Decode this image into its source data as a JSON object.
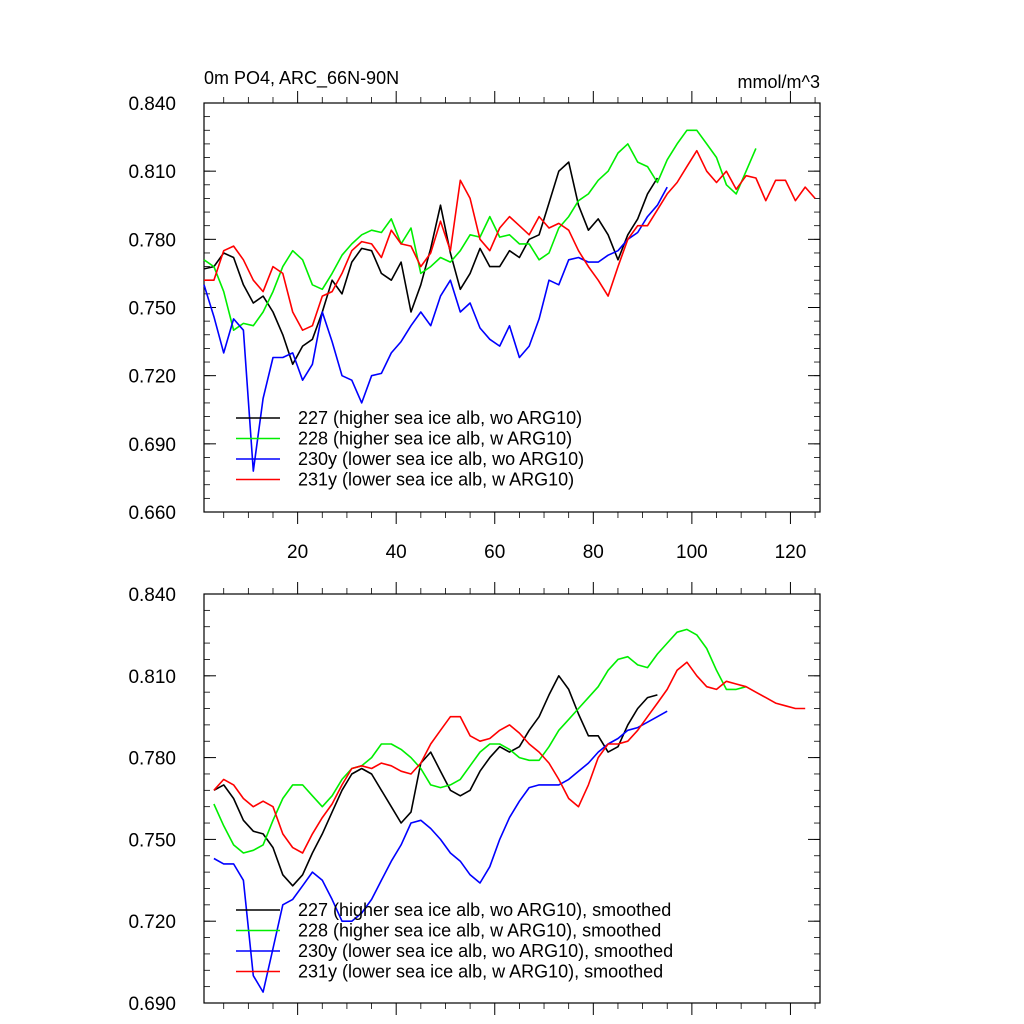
{
  "chart_data": [
    {
      "type": "line",
      "title": "0m PO4, ARC_66N-90N",
      "units": "mmol/m^3",
      "xlabel": "",
      "ylabel": "",
      "xlim": [
        1,
        126
      ],
      "ylim": [
        0.66,
        0.84
      ],
      "x_ticks": [
        20,
        40,
        60,
        80,
        100,
        120
      ],
      "x_tick_labels": [
        "20",
        "40",
        "60",
        "80",
        "100",
        "120"
      ],
      "y_ticks": [
        0.66,
        0.69,
        0.72,
        0.75,
        0.78,
        0.81,
        0.84
      ],
      "y_tick_labels": [
        "0.660",
        "0.690",
        "0.720",
        "0.750",
        "0.780",
        "0.810",
        "0.840"
      ],
      "legend_position": "bottom-left",
      "series": [
        {
          "name": "227 (higher sea ice alb, wo ARG10)",
          "color": "#000000",
          "x": [
            1,
            3,
            5,
            7,
            9,
            11,
            13,
            15,
            17,
            19,
            21,
            23,
            25,
            27,
            29,
            31,
            33,
            35,
            37,
            39,
            41,
            43,
            45,
            47,
            49,
            51,
            53,
            55,
            57,
            59,
            61,
            63,
            65,
            67,
            69,
            71,
            73,
            75,
            77,
            79,
            81,
            83,
            85,
            87,
            89,
            91,
            93
          ],
          "y": [
            0.767,
            0.768,
            0.774,
            0.772,
            0.76,
            0.752,
            0.755,
            0.748,
            0.738,
            0.725,
            0.733,
            0.736,
            0.748,
            0.762,
            0.756,
            0.77,
            0.776,
            0.775,
            0.765,
            0.762,
            0.77,
            0.748,
            0.76,
            0.776,
            0.795,
            0.774,
            0.758,
            0.765,
            0.776,
            0.768,
            0.768,
            0.775,
            0.772,
            0.78,
            0.782,
            0.796,
            0.81,
            0.814,
            0.795,
            0.784,
            0.789,
            0.782,
            0.771,
            0.782,
            0.789,
            0.8,
            0.807
          ]
        },
        {
          "name": "228 (higher sea ice alb, w ARG10)",
          "color": "#00ee00",
          "x": [
            1,
            3,
            5,
            7,
            9,
            11,
            13,
            15,
            17,
            19,
            21,
            23,
            25,
            27,
            29,
            31,
            33,
            35,
            37,
            39,
            41,
            43,
            45,
            47,
            49,
            51,
            53,
            55,
            57,
            59,
            61,
            63,
            65,
            67,
            69,
            71,
            73,
            75,
            77,
            79,
            81,
            83,
            85,
            87,
            89,
            91,
            93,
            95,
            97,
            99,
            101,
            103,
            105,
            107,
            109,
            111,
            113
          ],
          "y": [
            0.771,
            0.768,
            0.757,
            0.74,
            0.743,
            0.742,
            0.748,
            0.757,
            0.768,
            0.775,
            0.771,
            0.76,
            0.758,
            0.765,
            0.773,
            0.778,
            0.782,
            0.784,
            0.783,
            0.789,
            0.778,
            0.785,
            0.765,
            0.768,
            0.772,
            0.77,
            0.775,
            0.782,
            0.781,
            0.79,
            0.781,
            0.782,
            0.778,
            0.778,
            0.771,
            0.774,
            0.785,
            0.79,
            0.797,
            0.8,
            0.806,
            0.81,
            0.818,
            0.822,
            0.814,
            0.812,
            0.805,
            0.815,
            0.822,
            0.828,
            0.828,
            0.822,
            0.816,
            0.804,
            0.8,
            0.81,
            0.82
          ]
        },
        {
          "name": "230y (lower sea ice alb, wo ARG10)",
          "color": "#0000ff",
          "x": [
            1,
            3,
            5,
            7,
            9,
            11,
            13,
            15,
            17,
            19,
            21,
            23,
            25,
            27,
            29,
            31,
            33,
            35,
            37,
            39,
            41,
            43,
            45,
            47,
            49,
            51,
            53,
            55,
            57,
            59,
            61,
            63,
            65,
            67,
            69,
            71,
            73,
            75,
            77,
            79,
            81,
            83,
            85,
            87,
            89,
            91,
            93,
            95
          ],
          "y": [
            0.76,
            0.746,
            0.73,
            0.745,
            0.74,
            0.678,
            0.71,
            0.728,
            0.728,
            0.73,
            0.718,
            0.725,
            0.748,
            0.735,
            0.72,
            0.718,
            0.708,
            0.72,
            0.721,
            0.73,
            0.735,
            0.742,
            0.748,
            0.742,
            0.755,
            0.762,
            0.748,
            0.752,
            0.741,
            0.736,
            0.733,
            0.742,
            0.728,
            0.733,
            0.745,
            0.762,
            0.76,
            0.771,
            0.772,
            0.77,
            0.77,
            0.773,
            0.775,
            0.78,
            0.783,
            0.79,
            0.795,
            0.803
          ]
        },
        {
          "name": "231y (lower sea ice alb, w ARG10)",
          "color": "#ff0000",
          "x": [
            1,
            3,
            5,
            7,
            9,
            11,
            13,
            15,
            17,
            19,
            21,
            23,
            25,
            27,
            29,
            31,
            33,
            35,
            37,
            39,
            41,
            43,
            45,
            47,
            49,
            51,
            53,
            55,
            57,
            59,
            61,
            63,
            65,
            67,
            69,
            71,
            73,
            75,
            77,
            79,
            81,
            83,
            85,
            87,
            89,
            91,
            93,
            95,
            97,
            99,
            101,
            103,
            105,
            107,
            109,
            111,
            113,
            115,
            117,
            119,
            121,
            123,
            125
          ],
          "y": [
            0.762,
            0.762,
            0.775,
            0.777,
            0.771,
            0.762,
            0.757,
            0.768,
            0.765,
            0.748,
            0.74,
            0.742,
            0.755,
            0.757,
            0.765,
            0.775,
            0.779,
            0.778,
            0.772,
            0.784,
            0.778,
            0.777,
            0.768,
            0.774,
            0.788,
            0.775,
            0.806,
            0.798,
            0.78,
            0.775,
            0.785,
            0.79,
            0.786,
            0.782,
            0.79,
            0.785,
            0.787,
            0.784,
            0.775,
            0.768,
            0.762,
            0.755,
            0.768,
            0.78,
            0.786,
            0.786,
            0.793,
            0.8,
            0.805,
            0.812,
            0.819,
            0.81,
            0.805,
            0.81,
            0.802,
            0.808,
            0.807,
            0.797,
            0.806,
            0.806,
            0.797,
            0.803,
            0.798
          ]
        }
      ]
    },
    {
      "type": "line",
      "title": "",
      "xlabel": "",
      "ylabel": "",
      "xlim": [
        1,
        126
      ],
      "ylim": [
        0.69,
        0.84
      ],
      "x_ticks": [
        20,
        40,
        60,
        80,
        100,
        120
      ],
      "y_ticks": [
        0.69,
        0.72,
        0.75,
        0.78,
        0.81,
        0.84
      ],
      "y_tick_labels": [
        "0.690",
        "0.720",
        "0.750",
        "0.780",
        "0.810",
        "0.840"
      ],
      "legend_position": "bottom-left",
      "series": [
        {
          "name": "227 (higher sea ice alb, wo ARG10), smoothed",
          "color": "#000000",
          "x": [
            3,
            5,
            7,
            9,
            11,
            13,
            15,
            17,
            19,
            21,
            23,
            25,
            27,
            29,
            31,
            33,
            35,
            37,
            39,
            41,
            43,
            45,
            47,
            49,
            51,
            53,
            55,
            57,
            59,
            61,
            63,
            65,
            67,
            69,
            71,
            73,
            75,
            77,
            79,
            81,
            83,
            85,
            87,
            89,
            91,
            93
          ],
          "y": [
            0.768,
            0.77,
            0.765,
            0.757,
            0.753,
            0.752,
            0.747,
            0.737,
            0.733,
            0.737,
            0.745,
            0.752,
            0.76,
            0.768,
            0.774,
            0.776,
            0.774,
            0.768,
            0.762,
            0.756,
            0.76,
            0.778,
            0.782,
            0.775,
            0.768,
            0.766,
            0.768,
            0.775,
            0.78,
            0.784,
            0.782,
            0.784,
            0.79,
            0.795,
            0.803,
            0.81,
            0.805,
            0.796,
            0.788,
            0.788,
            0.782,
            0.784,
            0.792,
            0.798,
            0.802,
            0.803
          ]
        },
        {
          "name": "228 (higher sea ice alb, w ARG10), smoothed",
          "color": "#00ee00",
          "x": [
            3,
            5,
            7,
            9,
            11,
            13,
            15,
            17,
            19,
            21,
            23,
            25,
            27,
            29,
            31,
            33,
            35,
            37,
            39,
            41,
            43,
            45,
            47,
            49,
            51,
            53,
            55,
            57,
            59,
            61,
            63,
            65,
            67,
            69,
            71,
            73,
            75,
            77,
            79,
            81,
            83,
            85,
            87,
            89,
            91,
            93,
            95,
            97,
            99,
            101,
            103,
            105,
            107,
            109,
            111
          ],
          "y": [
            0.763,
            0.755,
            0.748,
            0.745,
            0.746,
            0.748,
            0.757,
            0.765,
            0.77,
            0.77,
            0.766,
            0.762,
            0.766,
            0.772,
            0.776,
            0.777,
            0.78,
            0.785,
            0.785,
            0.783,
            0.78,
            0.776,
            0.77,
            0.769,
            0.77,
            0.772,
            0.777,
            0.782,
            0.785,
            0.785,
            0.783,
            0.78,
            0.779,
            0.779,
            0.784,
            0.79,
            0.794,
            0.798,
            0.802,
            0.806,
            0.812,
            0.816,
            0.817,
            0.814,
            0.813,
            0.818,
            0.822,
            0.826,
            0.827,
            0.825,
            0.82,
            0.812,
            0.805,
            0.805,
            0.806
          ]
        },
        {
          "name": "230y (lower sea ice alb, wo ARG10), smoothed",
          "color": "#0000ff",
          "x": [
            3,
            5,
            7,
            9,
            11,
            13,
            15,
            17,
            19,
            21,
            23,
            25,
            27,
            29,
            31,
            33,
            35,
            37,
            39,
            41,
            43,
            45,
            47,
            49,
            51,
            53,
            55,
            57,
            59,
            61,
            63,
            65,
            67,
            69,
            71,
            73,
            75,
            77,
            79,
            81,
            83,
            85,
            87,
            89,
            91,
            93,
            95
          ],
          "y": [
            0.743,
            0.741,
            0.741,
            0.735,
            0.7,
            0.694,
            0.71,
            0.726,
            0.728,
            0.733,
            0.738,
            0.735,
            0.728,
            0.72,
            0.72,
            0.723,
            0.728,
            0.735,
            0.742,
            0.748,
            0.756,
            0.757,
            0.754,
            0.75,
            0.745,
            0.742,
            0.737,
            0.734,
            0.74,
            0.75,
            0.758,
            0.764,
            0.769,
            0.77,
            0.77,
            0.77,
            0.772,
            0.775,
            0.778,
            0.782,
            0.785,
            0.787,
            0.79,
            0.791,
            0.793,
            0.795,
            0.797
          ]
        },
        {
          "name": "231y (lower sea ice alb, w ARG10), smoothed",
          "color": "#ff0000",
          "x": [
            3,
            5,
            7,
            9,
            11,
            13,
            15,
            17,
            19,
            21,
            23,
            25,
            27,
            29,
            31,
            33,
            35,
            37,
            39,
            41,
            43,
            45,
            47,
            49,
            51,
            53,
            55,
            57,
            59,
            61,
            63,
            65,
            67,
            69,
            71,
            73,
            75,
            77,
            79,
            81,
            83,
            85,
            87,
            89,
            91,
            93,
            95,
            97,
            99,
            101,
            103,
            105,
            107,
            109,
            111,
            113,
            115,
            117,
            119,
            121,
            123
          ],
          "y": [
            0.768,
            0.772,
            0.77,
            0.765,
            0.762,
            0.764,
            0.762,
            0.752,
            0.747,
            0.745,
            0.752,
            0.758,
            0.763,
            0.77,
            0.776,
            0.777,
            0.776,
            0.778,
            0.777,
            0.775,
            0.774,
            0.778,
            0.785,
            0.79,
            0.795,
            0.795,
            0.788,
            0.786,
            0.787,
            0.79,
            0.792,
            0.789,
            0.785,
            0.782,
            0.778,
            0.772,
            0.765,
            0.762,
            0.77,
            0.78,
            0.785,
            0.785,
            0.786,
            0.79,
            0.795,
            0.8,
            0.805,
            0.812,
            0.815,
            0.81,
            0.806,
            0.805,
            0.808,
            0.807,
            0.806,
            0.804,
            0.802,
            0.8,
            0.799,
            0.798,
            0.798
          ]
        }
      ]
    }
  ]
}
